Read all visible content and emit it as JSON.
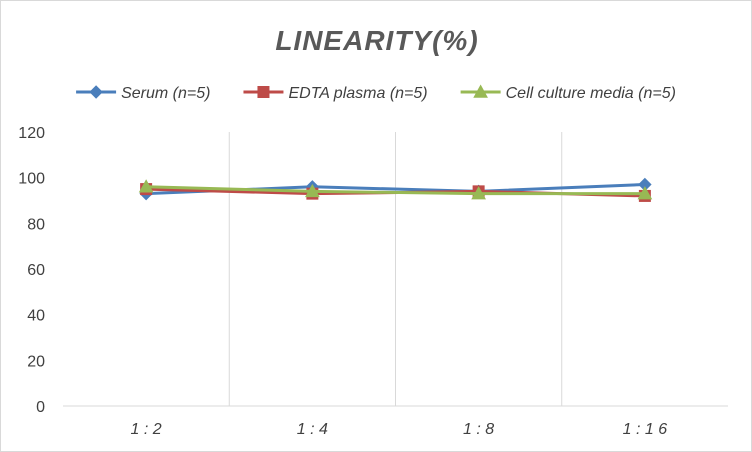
{
  "chart_data": {
    "type": "line",
    "title": "LINEARITY(%)",
    "xlabel": "",
    "ylabel": "",
    "categories": [
      "1:2",
      "1:4",
      "1:8",
      "1:16"
    ],
    "ylim": [
      0,
      120
    ],
    "yticks": [
      0,
      20,
      40,
      60,
      80,
      100,
      120
    ],
    "grid": "vertical",
    "legend_position": "top",
    "series": [
      {
        "name": "Serum (n=5)",
        "values": [
          93,
          96,
          94,
          97
        ],
        "color": "#4a7ebb",
        "marker": "diamond"
      },
      {
        "name": "EDTA plasma (n=5)",
        "values": [
          95,
          93,
          94,
          92
        ],
        "color": "#be4b48",
        "marker": "square"
      },
      {
        "name": "Cell culture media (n=5)",
        "values": [
          96,
          94,
          93,
          93
        ],
        "color": "#98b954",
        "marker": "triangle"
      }
    ]
  }
}
